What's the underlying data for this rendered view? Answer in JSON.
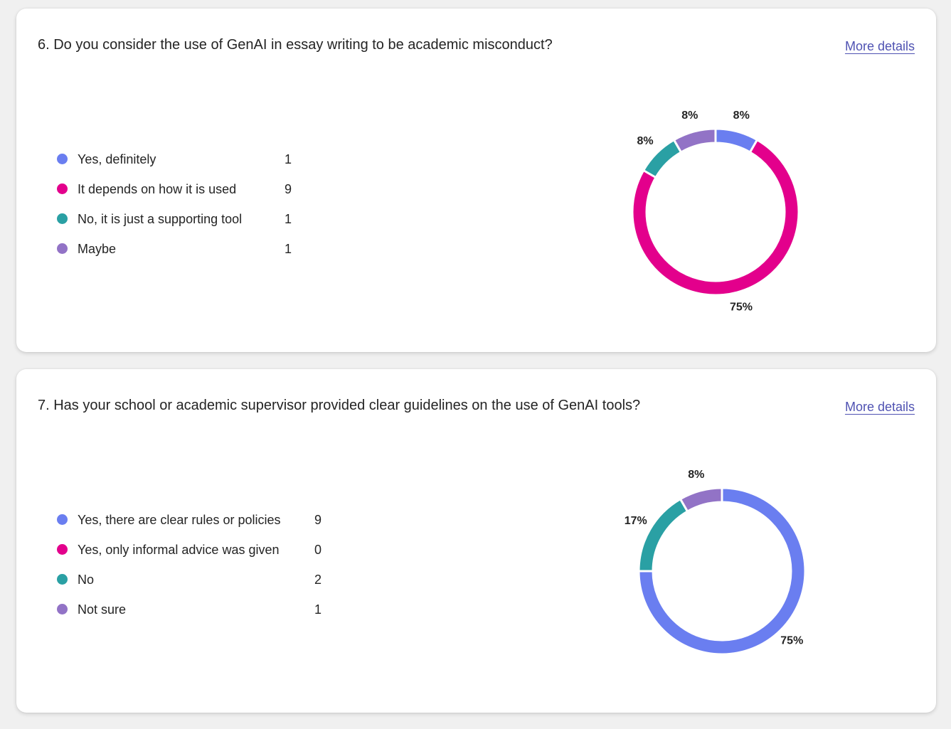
{
  "cards": [
    {
      "question": "6. Do you consider the use of GenAI in essay writing to be academic misconduct?",
      "more_details": "More details",
      "chart_data": {
        "type": "pie",
        "donut": true,
        "categories": [
          "Yes, definitely",
          "It depends on how it is used",
          "No, it is just a supporting tool",
          "Maybe"
        ],
        "values": [
          1,
          9,
          1,
          1
        ],
        "percent_labels": [
          "8%",
          "75%",
          "8%",
          "8%"
        ],
        "colors": [
          "#6a7ef0",
          "#e3008c",
          "#2aa0a4",
          "#9273c6"
        ]
      }
    },
    {
      "question": "7. Has your school or academic supervisor provided clear guidelines on the use of GenAI tools?",
      "more_details": "More details",
      "chart_data": {
        "type": "pie",
        "donut": true,
        "categories": [
          "Yes, there are clear rules or policies",
          "Yes, only informal advice was given",
          "No",
          "Not sure"
        ],
        "values": [
          9,
          0,
          2,
          1
        ],
        "percent_labels": [
          "75%",
          "",
          "17%",
          "8%"
        ],
        "colors": [
          "#6a7ef0",
          "#e3008c",
          "#2aa0a4",
          "#9273c6"
        ]
      }
    }
  ]
}
